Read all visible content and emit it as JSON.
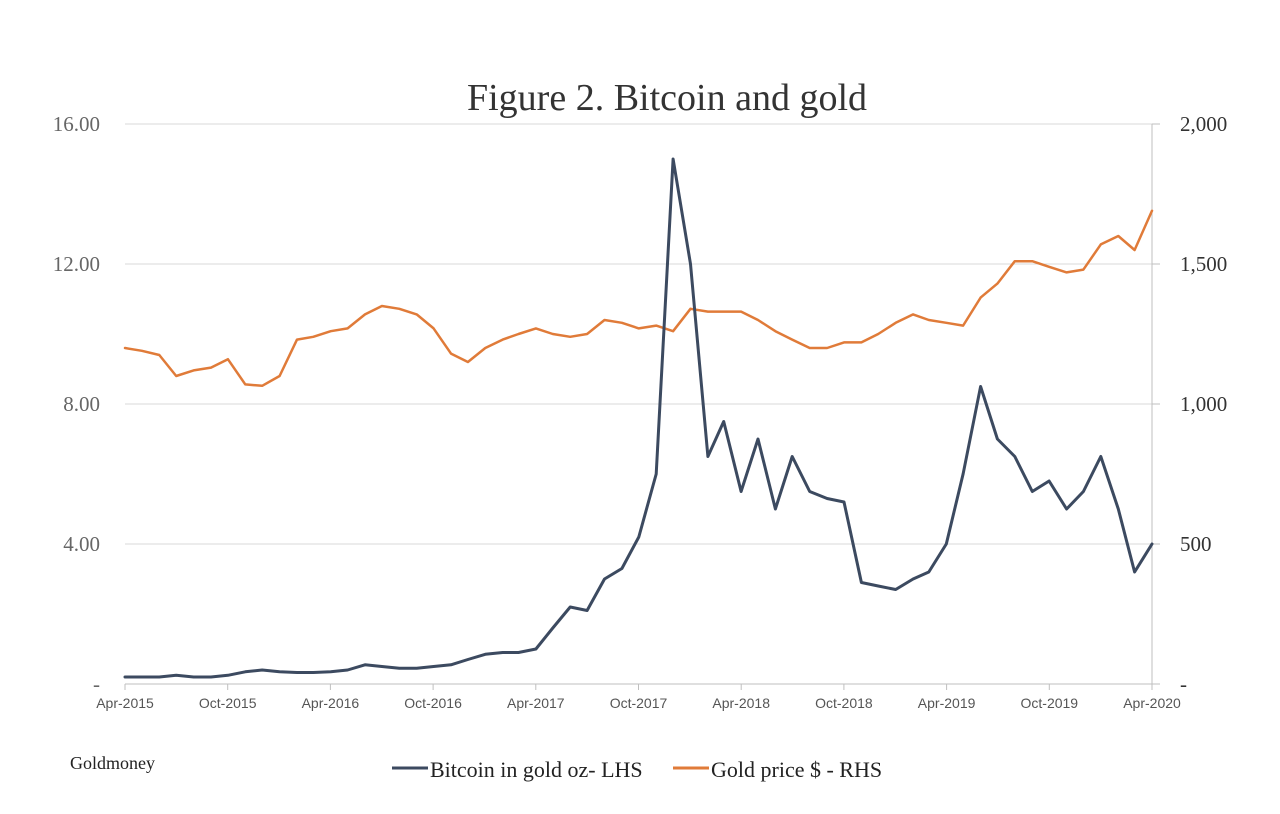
{
  "chart_data": {
    "type": "line",
    "title": "Figure 2. Bitcoin and gold",
    "source": "Goldmoney",
    "legend_position": "bottom",
    "grid": true,
    "x_tick_labels": [
      "Apr-2015",
      "Oct-2015",
      "Apr-2016",
      "Oct-2016",
      "Apr-2017",
      "Oct-2017",
      "Apr-2018",
      "Oct-2018",
      "Apr-2019",
      "Oct-2019",
      "Apr-2020"
    ],
    "y_left_ticks": [
      0,
      4,
      8,
      12,
      16
    ],
    "y_left_tick_labels": [
      "-",
      "4.00",
      "8.00",
      "12.00",
      "16.00"
    ],
    "y_left_lim": [
      0,
      16
    ],
    "y_right_ticks": [
      0,
      500,
      1000,
      1500,
      2000
    ],
    "y_right_tick_labels": [
      "-",
      "500",
      "1,000",
      "1,500",
      "2,000"
    ],
    "y_right_lim": [
      0,
      2000
    ],
    "series": [
      {
        "name": "Bitcoin in gold oz- LHS",
        "axis": "left",
        "color": "#3c4a60",
        "x": [
          "2015-04",
          "2015-05",
          "2015-06",
          "2015-07",
          "2015-08",
          "2015-09",
          "2015-10",
          "2015-11",
          "2015-12",
          "2016-01",
          "2016-02",
          "2016-03",
          "2016-04",
          "2016-05",
          "2016-06",
          "2016-07",
          "2016-08",
          "2016-09",
          "2016-10",
          "2016-11",
          "2016-12",
          "2017-01",
          "2017-02",
          "2017-03",
          "2017-04",
          "2017-05",
          "2017-06",
          "2017-07",
          "2017-08",
          "2017-09",
          "2017-10",
          "2017-11",
          "2017-12",
          "2018-01",
          "2018-02",
          "2018-03",
          "2018-04",
          "2018-05",
          "2018-06",
          "2018-07",
          "2018-08",
          "2018-09",
          "2018-10",
          "2018-11",
          "2018-12",
          "2019-01",
          "2019-02",
          "2019-03",
          "2019-04",
          "2019-05",
          "2019-06",
          "2019-07",
          "2019-08",
          "2019-09",
          "2019-10",
          "2019-11",
          "2019-12",
          "2020-01",
          "2020-02",
          "2020-03",
          "2020-04"
        ],
        "values": [
          0.2,
          0.2,
          0.2,
          0.25,
          0.2,
          0.2,
          0.25,
          0.35,
          0.4,
          0.35,
          0.33,
          0.33,
          0.35,
          0.4,
          0.55,
          0.5,
          0.45,
          0.45,
          0.5,
          0.55,
          0.7,
          0.85,
          0.9,
          0.9,
          1.0,
          1.6,
          2.2,
          2.1,
          3.0,
          3.3,
          4.2,
          6.0,
          15.0,
          12.0,
          6.5,
          7.5,
          5.5,
          7.0,
          5.0,
          6.5,
          5.5,
          5.3,
          5.2,
          2.9,
          2.8,
          2.7,
          3.0,
          3.2,
          4.0,
          6.0,
          8.5,
          7.0,
          6.5,
          5.5,
          5.8,
          5.0,
          5.5,
          6.5,
          5.0,
          3.2,
          4.0
        ]
      },
      {
        "name": "Gold price $ - RHS",
        "axis": "right",
        "color": "#e07b39",
        "x": [
          "2015-04",
          "2015-05",
          "2015-06",
          "2015-07",
          "2015-08",
          "2015-09",
          "2015-10",
          "2015-11",
          "2015-12",
          "2016-01",
          "2016-02",
          "2016-03",
          "2016-04",
          "2016-05",
          "2016-06",
          "2016-07",
          "2016-08",
          "2016-09",
          "2016-10",
          "2016-11",
          "2016-12",
          "2017-01",
          "2017-02",
          "2017-03",
          "2017-04",
          "2017-05",
          "2017-06",
          "2017-07",
          "2017-08",
          "2017-09",
          "2017-10",
          "2017-11",
          "2017-12",
          "2018-01",
          "2018-02",
          "2018-03",
          "2018-04",
          "2018-05",
          "2018-06",
          "2018-07",
          "2018-08",
          "2018-09",
          "2018-10",
          "2018-11",
          "2018-12",
          "2019-01",
          "2019-02",
          "2019-03",
          "2019-04",
          "2019-05",
          "2019-06",
          "2019-07",
          "2019-08",
          "2019-09",
          "2019-10",
          "2019-11",
          "2019-12",
          "2020-01",
          "2020-02",
          "2020-03",
          "2020-04"
        ],
        "values": [
          1200,
          1190,
          1175,
          1100,
          1120,
          1130,
          1160,
          1070,
          1065,
          1100,
          1230,
          1240,
          1260,
          1270,
          1320,
          1350,
          1340,
          1320,
          1270,
          1180,
          1150,
          1200,
          1230,
          1250,
          1270,
          1250,
          1240,
          1250,
          1300,
          1290,
          1270,
          1280,
          1260,
          1340,
          1330,
          1330,
          1330,
          1300,
          1260,
          1230,
          1200,
          1200,
          1220,
          1220,
          1250,
          1290,
          1320,
          1300,
          1290,
          1280,
          1380,
          1430,
          1510,
          1510,
          1490,
          1470,
          1480,
          1570,
          1600,
          1550,
          1690
        ]
      }
    ]
  }
}
